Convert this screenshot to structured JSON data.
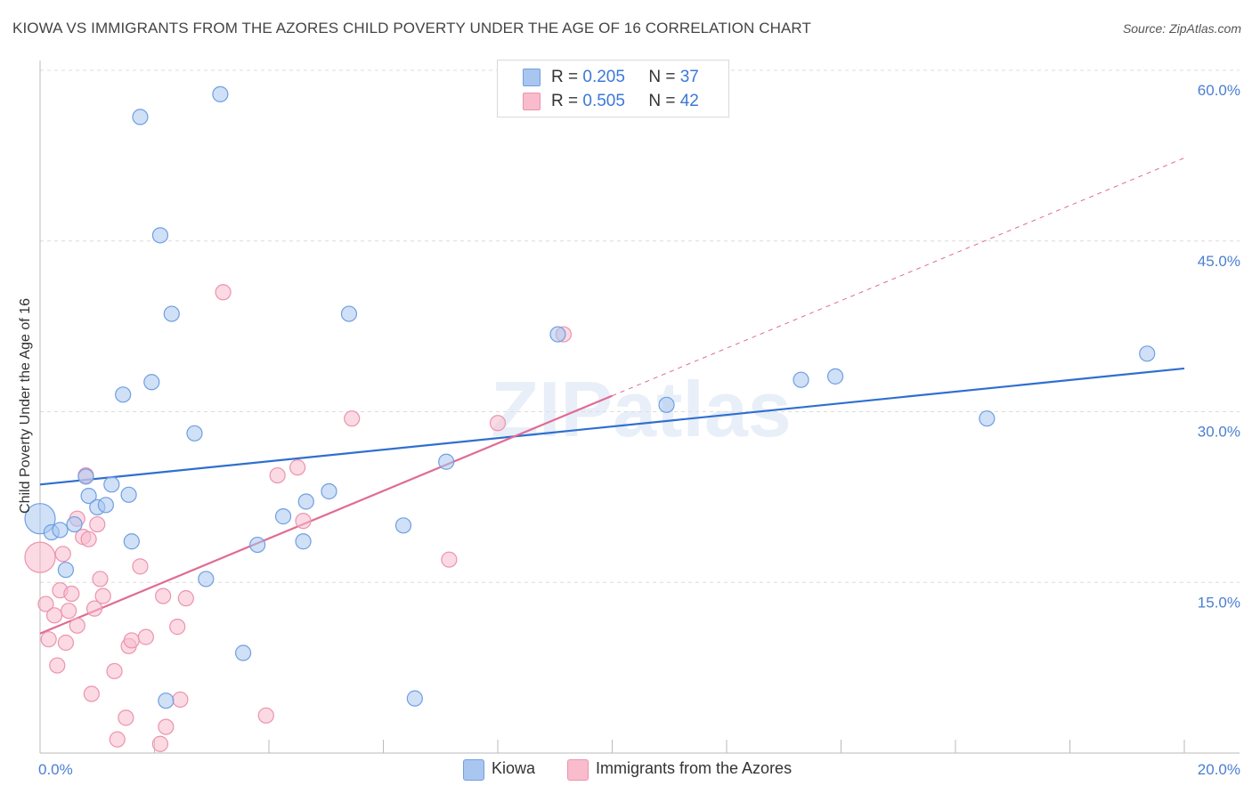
{
  "title": "KIOWA VS IMMIGRANTS FROM THE AZORES CHILD POVERTY UNDER THE AGE OF 16 CORRELATION CHART",
  "source": "Source: ZipAtlas.com",
  "watermark": "ZIPatlas",
  "legend": {
    "rows": [
      {
        "r_label": "R =",
        "r_value": "0.205",
        "n_label": "N =",
        "n_value": "37"
      },
      {
        "r_label": "R =",
        "r_value": "0.505",
        "n_label": "N =",
        "n_value": "42"
      }
    ]
  },
  "bottom_legend": [
    "Kiowa",
    "Immigrants from the Azores"
  ],
  "colors": {
    "kiowa_fill": "#a8c6f0",
    "kiowa_stroke": "#6f9fe0",
    "kiowa_line": "#2f6fcf",
    "azores_fill": "#f8bccd",
    "azores_stroke": "#ec93ad",
    "azores_line": "#e06b93",
    "grid": "#dcdcdc",
    "tick_text": "#4a7fd0"
  },
  "chart_data": {
    "type": "scatter",
    "title": "KIOWA VS IMMIGRANTS FROM THE AZORES CHILD POVERTY UNDER THE AGE OF 16 CORRELATION CHART",
    "xlabel": "",
    "ylabel": "Child Poverty Under the Age of 16",
    "xlim": [
      0,
      20
    ],
    "ylim": [
      0,
      60
    ],
    "x_tick_labels": [
      "0.0%",
      "20.0%"
    ],
    "y_ticks": [
      15,
      30,
      45,
      60
    ],
    "y_tick_labels": [
      "15.0%",
      "30.0%",
      "45.0%",
      "60.0%"
    ],
    "grid": true,
    "series": [
      {
        "name": "Kiowa",
        "R": 0.205,
        "N": 37,
        "trend": {
          "x0": 0,
          "y0": 23.6,
          "x1": 20,
          "y1": 33.8,
          "dashed_from": null
        },
        "points": [
          {
            "x": 0.0,
            "y": 20.6,
            "big": true
          },
          {
            "x": 0.2,
            "y": 19.4
          },
          {
            "x": 0.35,
            "y": 19.6
          },
          {
            "x": 0.45,
            "y": 16.1
          },
          {
            "x": 0.6,
            "y": 20.1
          },
          {
            "x": 0.8,
            "y": 24.3
          },
          {
            "x": 0.85,
            "y": 22.6
          },
          {
            "x": 1.0,
            "y": 21.6
          },
          {
            "x": 1.15,
            "y": 21.8
          },
          {
            "x": 1.25,
            "y": 23.6
          },
          {
            "x": 1.45,
            "y": 31.5
          },
          {
            "x": 1.55,
            "y": 22.7
          },
          {
            "x": 1.6,
            "y": 18.6
          },
          {
            "x": 1.75,
            "y": 55.9
          },
          {
            "x": 1.95,
            "y": 32.6
          },
          {
            "x": 2.1,
            "y": 45.5
          },
          {
            "x": 2.2,
            "y": 4.6
          },
          {
            "x": 2.3,
            "y": 38.6
          },
          {
            "x": 2.7,
            "y": 28.1
          },
          {
            "x": 2.9,
            "y": 15.3
          },
          {
            "x": 3.15,
            "y": 57.9
          },
          {
            "x": 3.55,
            "y": 8.8
          },
          {
            "x": 3.8,
            "y": 18.3
          },
          {
            "x": 4.25,
            "y": 20.8
          },
          {
            "x": 4.6,
            "y": 18.6
          },
          {
            "x": 4.65,
            "y": 22.1
          },
          {
            "x": 5.05,
            "y": 23.0
          },
          {
            "x": 5.4,
            "y": 38.6
          },
          {
            "x": 6.35,
            "y": 20.0
          },
          {
            "x": 6.55,
            "y": 4.8
          },
          {
            "x": 7.1,
            "y": 25.6
          },
          {
            "x": 9.05,
            "y": 36.8
          },
          {
            "x": 10.95,
            "y": 30.6
          },
          {
            "x": 13.3,
            "y": 32.8
          },
          {
            "x": 13.9,
            "y": 33.1
          },
          {
            "x": 16.55,
            "y": 29.4
          },
          {
            "x": 19.35,
            "y": 35.1
          }
        ]
      },
      {
        "name": "Immigrants from the Azores",
        "R": 0.505,
        "N": 42,
        "trend": {
          "x0": 0,
          "y0": 10.5,
          "x1": 20,
          "y1": 52.3,
          "dashed_from": 10.0
        },
        "points": [
          {
            "x": 0.0,
            "y": 17.2,
            "big": true
          },
          {
            "x": 0.1,
            "y": 13.1
          },
          {
            "x": 0.15,
            "y": 10.0
          },
          {
            "x": 0.25,
            "y": 12.1
          },
          {
            "x": 0.3,
            "y": 7.7
          },
          {
            "x": 0.35,
            "y": 14.3
          },
          {
            "x": 0.4,
            "y": 17.5
          },
          {
            "x": 0.45,
            "y": 9.7
          },
          {
            "x": 0.5,
            "y": 12.5
          },
          {
            "x": 0.55,
            "y": 14.0
          },
          {
            "x": 0.65,
            "y": 20.6
          },
          {
            "x": 0.65,
            "y": 11.2
          },
          {
            "x": 0.75,
            "y": 19.0
          },
          {
            "x": 0.8,
            "y": 24.4
          },
          {
            "x": 0.85,
            "y": 18.8
          },
          {
            "x": 0.9,
            "y": 5.2
          },
          {
            "x": 0.95,
            "y": 12.7
          },
          {
            "x": 1.0,
            "y": 20.1
          },
          {
            "x": 1.05,
            "y": 15.3
          },
          {
            "x": 1.1,
            "y": 13.8
          },
          {
            "x": 1.3,
            "y": 7.2
          },
          {
            "x": 1.35,
            "y": 1.2
          },
          {
            "x": 1.5,
            "y": 3.1
          },
          {
            "x": 1.55,
            "y": 9.4
          },
          {
            "x": 1.6,
            "y": 9.9
          },
          {
            "x": 1.75,
            "y": 16.4
          },
          {
            "x": 1.85,
            "y": 10.2
          },
          {
            "x": 2.1,
            "y": 0.8
          },
          {
            "x": 2.15,
            "y": 13.8
          },
          {
            "x": 2.2,
            "y": 2.3
          },
          {
            "x": 2.4,
            "y": 11.1
          },
          {
            "x": 2.45,
            "y": 4.7
          },
          {
            "x": 2.55,
            "y": 13.6
          },
          {
            "x": 3.2,
            "y": 40.5
          },
          {
            "x": 3.95,
            "y": 3.3
          },
          {
            "x": 4.15,
            "y": 24.4
          },
          {
            "x": 4.5,
            "y": 25.1
          },
          {
            "x": 4.6,
            "y": 20.4
          },
          {
            "x": 5.45,
            "y": 29.4
          },
          {
            "x": 7.15,
            "y": 17.0
          },
          {
            "x": 8.0,
            "y": 29.0
          },
          {
            "x": 9.15,
            "y": 36.8
          }
        ]
      }
    ]
  }
}
